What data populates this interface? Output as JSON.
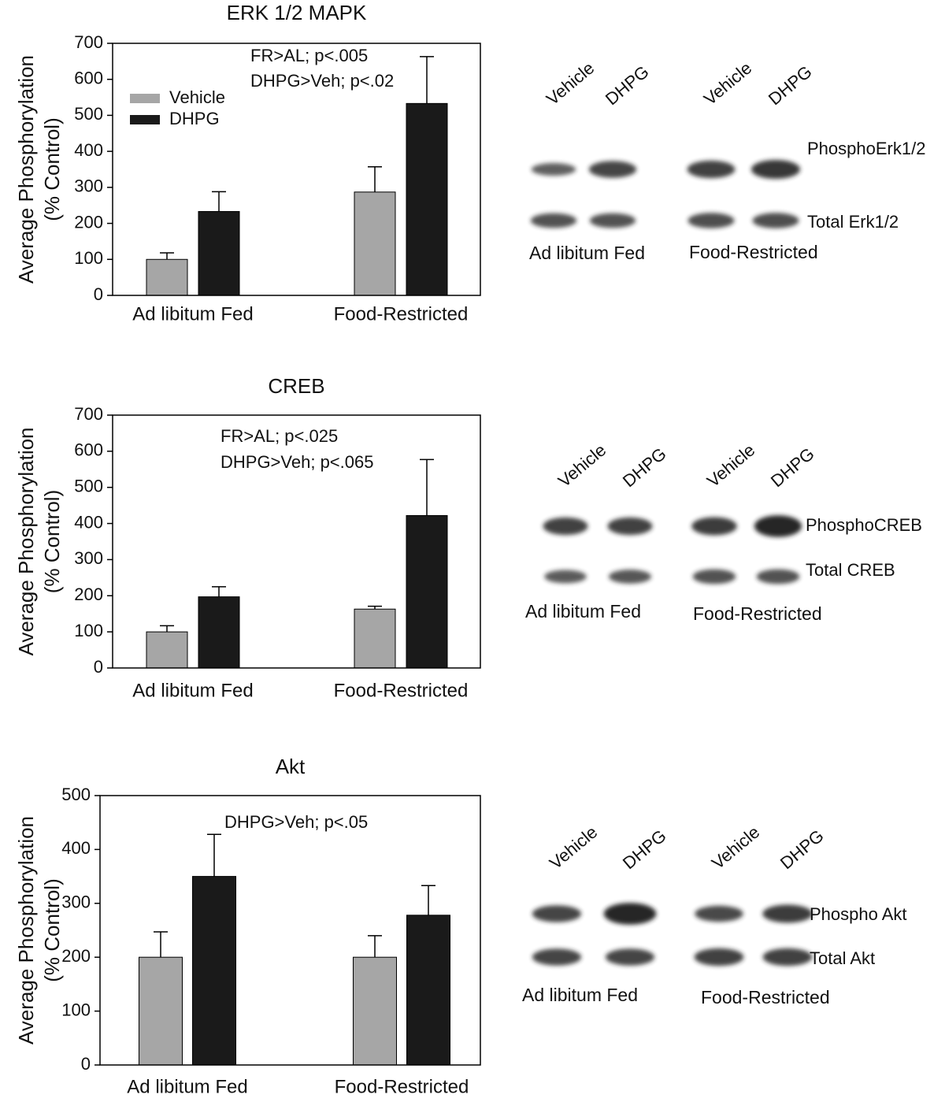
{
  "chart_data": [
    {
      "type": "bar",
      "title": "ERK 1/2 MAPK",
      "ylabel": [
        "Average Phosphorylation",
        "(% Control)"
      ],
      "categories": [
        "Ad libitum Fed",
        "Food-Restricted"
      ],
      "series": [
        {
          "name": "Vehicle",
          "color": "#a6a6a6",
          "values": [
            100,
            287
          ],
          "errors": [
            18,
            70
          ]
        },
        {
          "name": "DHPG",
          "color": "#1a1a1a",
          "values": [
            233,
            533
          ],
          "errors": [
            55,
            130
          ]
        }
      ],
      "ylim": [
        0,
        700
      ],
      "yticks": [
        0,
        100,
        200,
        300,
        400,
        500,
        600,
        700
      ],
      "annotations": [
        "FR>AL; p<.005",
        "DHPG>Veh; p<.02"
      ],
      "legend": "upper left"
    },
    {
      "type": "bar",
      "title": "CREB",
      "ylabel": [
        "Average Phosphorylation",
        "(% Control)"
      ],
      "categories": [
        "Ad libitum Fed",
        "Food-Restricted"
      ],
      "series": [
        {
          "color": "#a6a6a6",
          "values": [
            100,
            163
          ],
          "errors": [
            17,
            8
          ]
        },
        {
          "color": "#1a1a1a",
          "values": [
            197,
            422
          ],
          "errors": [
            28,
            155
          ]
        }
      ],
      "ylim": [
        0,
        700
      ],
      "yticks": [
        0,
        100,
        200,
        300,
        400,
        500,
        600,
        700
      ],
      "annotations": [
        "FR>AL; p<.025",
        "DHPG>Veh; p<.065"
      ]
    },
    {
      "type": "bar",
      "title": "Akt",
      "ylabel": [
        "Average Phosphorylation",
        "(% Control)"
      ],
      "categories": [
        "Ad libitum Fed",
        "Food-Restricted"
      ],
      "series": [
        {
          "color": "#a6a6a6",
          "values": [
            200,
            200
          ],
          "errors": [
            47,
            40
          ]
        },
        {
          "color": "#1a1a1a",
          "values": [
            350,
            278
          ],
          "errors": [
            78,
            55
          ]
        }
      ],
      "ylim": [
        0,
        500
      ],
      "yticks": [
        0,
        100,
        200,
        300,
        400,
        500
      ],
      "annotations": [
        "DHPG>Veh; p<.05"
      ]
    }
  ],
  "blots": [
    {
      "lanes": [
        "Vehicle",
        "DHPG",
        "Vehicle",
        "DHPG"
      ],
      "rows": [
        "PhosphoErk1/2",
        "Total Erk1/2"
      ],
      "groups": [
        "Ad libitum Fed",
        "Food-Restricted"
      ]
    },
    {
      "lanes": [
        "Vehicle",
        "DHPG",
        "Vehicle",
        "DHPG"
      ],
      "rows": [
        "PhosphoCREB",
        "Total CREB"
      ],
      "groups": [
        "Ad libitum Fed",
        "Food-Restricted"
      ]
    },
    {
      "lanes": [
        "Vehicle",
        "DHPG",
        "Vehicle",
        "DHPG"
      ],
      "rows": [
        "Phospho Akt",
        "Total Akt"
      ],
      "groups": [
        "Ad libitum Fed",
        "Food-Restricted"
      ]
    }
  ]
}
